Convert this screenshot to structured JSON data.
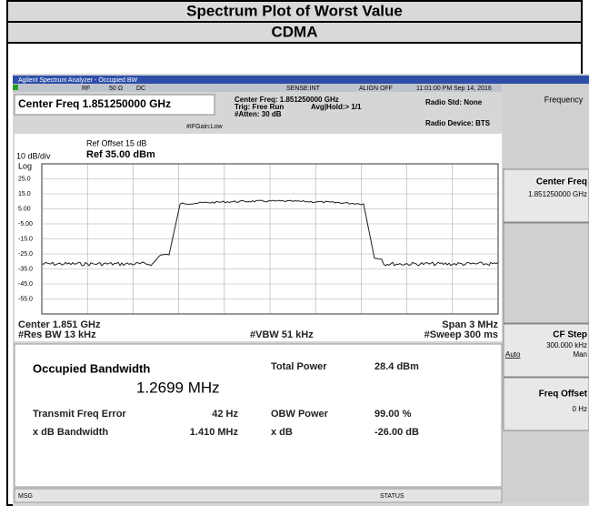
{
  "header": {
    "title": "Spectrum Plot of Worst Value",
    "subtitle": "CDMA"
  },
  "analyzer": {
    "window_title": "Agilent Spectrum Analyzer - Occupied BW",
    "status_top": {
      "rf": "RF",
      "impedance": "50 Ω",
      "coupling": "DC",
      "sense": "SENSE:INT",
      "align": "ALIGN OFF",
      "timestamp": "11:01:00 PM Sep 14, 2016"
    },
    "center_freq_display": "Center Freq 1.851250000 GHz",
    "settings": {
      "center_freq": "Center Freq: 1.851250000 GHz",
      "trig": "Trig: Free Run",
      "avg_hold": "Avg|Hold:> 1/1",
      "atten": "#Atten: 30 dB",
      "if_gain": "#IFGain:Low",
      "radio_std": "Radio Std: None",
      "radio_device": "Radio Device: BTS"
    },
    "plot": {
      "ref_offset": "Ref Offset 15 dB",
      "ref_level": "Ref 35.00 dBm",
      "scale": "10 dB/div",
      "scale_type": "Log",
      "y_labels": [
        "25.0",
        "15.0",
        "5.00",
        "-5.00",
        "-15.0",
        "-25.0",
        "-35.0",
        "-45.0",
        "-55.0"
      ]
    },
    "footer": {
      "center": "Center 1.851 GHz",
      "res_bw": "#Res BW 13 kHz",
      "vbw": "#VBW 51 kHz",
      "span": "Span 3 MHz",
      "sweep": "#Sweep 300 ms"
    },
    "results": {
      "occupied_bw_label": "Occupied Bandwidth",
      "occupied_bw_value": "1.2699 MHz",
      "total_power_label": "Total Power",
      "total_power_value": "28.4 dBm",
      "tx_freq_error_label": "Transmit Freq Error",
      "tx_freq_error_value": "42 Hz",
      "obw_power_label": "OBW Power",
      "obw_power_value": "99.00 %",
      "xdb_bw_label": "x dB Bandwidth",
      "xdb_bw_value": "1.410 MHz",
      "xdb_label": "x dB",
      "xdb_value": "-26.00 dB"
    },
    "status_bar": {
      "msg": "MSG",
      "status": "STATUS"
    },
    "menu": {
      "title": "Frequency",
      "center_freq": "Center Freq",
      "center_freq_value": "1.851250000 GHz",
      "cf_step": "CF Step",
      "cf_step_value": "300.000 kHz",
      "auto": "Auto",
      "man": "Man",
      "freq_offset": "Freq Offset",
      "freq_offset_value": "0 Hz"
    }
  }
}
